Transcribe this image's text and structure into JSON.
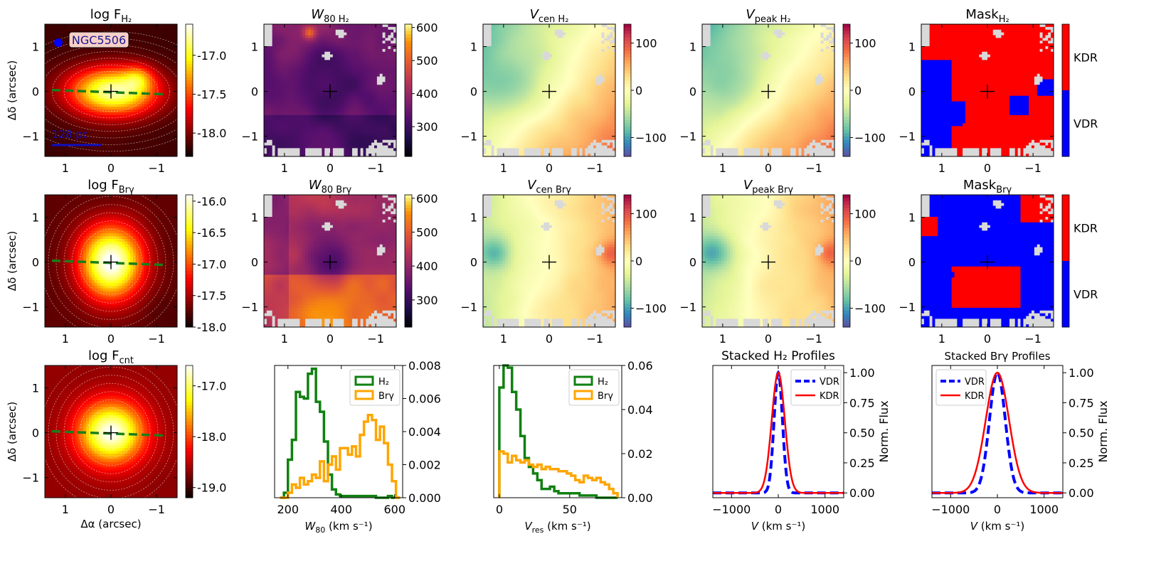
{
  "figure": {
    "galaxy_label": "NGC5506",
    "scalebar_label": "128 pc"
  },
  "colors": {
    "h2": "#108010",
    "brg": "#ffa500",
    "vdr": "#0000ff",
    "kdr": "#ff0000",
    "mask_bad": "#d9d9d9",
    "pa_line": "#1a7f1a"
  },
  "map_axes": {
    "x_ticks": [
      1,
      0,
      -1
    ],
    "x_tick_labels": [
      "1",
      "0",
      "−1"
    ],
    "y_ticks": [
      1,
      0,
      -1
    ],
    "y_tick_labels": [
      "1",
      "0",
      "−1"
    ],
    "xlim": [
      1.45,
      -1.45
    ],
    "ylim": [
      -1.45,
      1.5
    ],
    "xlabel": "Δα (arcsec)",
    "ylabel": "Δδ (arcsec)"
  },
  "maps": [
    {
      "id": "flux_h2",
      "title": "log F",
      "title_sub": "H₂",
      "cmap": "hot",
      "clim": [
        -18.3,
        -16.6
      ],
      "ticks": [
        -17.0,
        -17.5,
        -18.0
      ],
      "tick_labels": [
        "-17.0",
        "-17.5",
        "-18.0"
      ],
      "field": "flux_h2",
      "gauss": "wide",
      "contours": true
    },
    {
      "id": "w80_h2",
      "title": "W",
      "title_sub": "80 H₂",
      "cmap": "inferno",
      "clim": [
        210,
        610
      ],
      "ticks": [
        600,
        500,
        400,
        300
      ],
      "tick_labels": [
        "600",
        "500",
        "400",
        "300"
      ],
      "field": "w80_h2"
    },
    {
      "id": "vcen_h2",
      "title": "V",
      "title_sub": "cen H₂",
      "cmap": "spectral",
      "clim": [
        -140,
        140
      ],
      "ticks": [
        100,
        0,
        -100
      ],
      "tick_labels": [
        "100",
        "0",
        "−100"
      ],
      "field": "vel_h2"
    },
    {
      "id": "vpeak_h2",
      "title": "V",
      "title_sub": "peak H₂",
      "cmap": "spectral",
      "clim": [
        -140,
        140
      ],
      "ticks": [
        100,
        0,
        -100
      ],
      "tick_labels": [
        "100",
        "0",
        "−100"
      ],
      "field": "vel_h2p"
    },
    {
      "id": "mask_h2",
      "title": "Mask",
      "title_sub": "H₂",
      "cmap": "mask",
      "clim": [
        0,
        1
      ],
      "ticks": [
        0.75,
        0.25
      ],
      "tick_labels": [
        "KDR",
        "VDR"
      ],
      "field": "mask_h2"
    },
    {
      "id": "flux_brg",
      "title": "log F",
      "title_sub": "Brγ",
      "cmap": "hot",
      "clim": [
        -18.0,
        -15.9
      ],
      "ticks": [
        -16.0,
        -16.5,
        -17.0,
        -17.5,
        -18.0
      ],
      "tick_labels": [
        "-16.0",
        "-16.5",
        "-17.0",
        "-17.5",
        "-18.0"
      ],
      "field": "flux_brg",
      "gauss": "round",
      "contours": true
    },
    {
      "id": "w80_brg",
      "title": "W",
      "title_sub": "80 Brγ",
      "cmap": "inferno",
      "clim": [
        220,
        610
      ],
      "ticks": [
        600,
        500,
        400,
        300
      ],
      "tick_labels": [
        "600",
        "500",
        "400",
        "300"
      ],
      "field": "w80_brg"
    },
    {
      "id": "vcen_brg",
      "title": "V",
      "title_sub": "cen Brγ",
      "cmap": "spectral",
      "clim": [
        -140,
        140
      ],
      "ticks": [
        100,
        0,
        -100
      ],
      "tick_labels": [
        "100",
        "0",
        "−100"
      ],
      "field": "vel_brg"
    },
    {
      "id": "vpeak_brg",
      "title": "V",
      "title_sub": "peak Brγ",
      "cmap": "spectral",
      "clim": [
        -140,
        140
      ],
      "ticks": [
        100,
        0,
        -100
      ],
      "tick_labels": [
        "100",
        "0",
        "−100"
      ],
      "field": "vel_brgp"
    },
    {
      "id": "mask_brg",
      "title": "Mask",
      "title_sub": "Brγ",
      "cmap": "mask",
      "clim": [
        0,
        1
      ],
      "ticks": [
        0.75,
        0.25
      ],
      "tick_labels": [
        "KDR",
        "VDR"
      ],
      "field": "mask_brg"
    },
    {
      "id": "flux_cnt",
      "title": "log F",
      "title_sub": "cnt",
      "cmap": "hot",
      "clim": [
        -19.2,
        -16.6
      ],
      "ticks": [
        -17.0,
        -18.0,
        -19.0
      ],
      "tick_labels": [
        "-17.0",
        "-18.0",
        "-19.0"
      ],
      "field": "flux_cnt",
      "gauss": "round",
      "contours": true
    }
  ],
  "chart_data": [
    {
      "type": "histogram",
      "title": "",
      "xlabel": "W",
      "xlabel_sub": "80",
      "xlabel_unit": " (km s⁻¹)",
      "xlim": [
        150,
        630
      ],
      "ylim": [
        0,
        0.008
      ],
      "x_ticks": [
        200,
        400,
        600
      ],
      "y_ticks": [
        0.0,
        0.002,
        0.004,
        0.006,
        0.008
      ],
      "y_tick_labels": [
        "0.000",
        "0.002",
        "0.004",
        "0.006",
        "0.008"
      ],
      "series": [
        {
          "name": "H₂",
          "edges": [
            170,
            185,
            200,
            215,
            230,
            245,
            260,
            275,
            290,
            305,
            320,
            335,
            350,
            365,
            380,
            395,
            410,
            425,
            440,
            455,
            470,
            485,
            500,
            515,
            530,
            545,
            560,
            575,
            590,
            605,
            620
          ],
          "values": [
            0.0,
            0.0003,
            0.0023,
            0.0035,
            0.0064,
            0.0061,
            0.006,
            0.0075,
            0.0078,
            0.0058,
            0.0052,
            0.0034,
            0.0014,
            0.0005,
            0.0002,
            0.0001,
            0.0001,
            0.0001,
            0.0001,
            0.0001,
            0.0001,
            0.0001,
            0.0001,
            0.0001,
            0.0,
            0.0,
            0.0,
            0.0001,
            0.0,
            0.0
          ]
        },
        {
          "name": "Brγ",
          "edges": [
            170,
            185,
            200,
            215,
            230,
            245,
            260,
            275,
            290,
            305,
            320,
            335,
            350,
            365,
            380,
            395,
            410,
            425,
            440,
            455,
            470,
            485,
            500,
            515,
            530,
            545,
            560,
            575,
            590,
            605,
            620
          ],
          "values": [
            0.0,
            0.0,
            0.0003,
            0.0008,
            0.0006,
            0.0012,
            0.0008,
            0.001,
            0.0014,
            0.0012,
            0.0022,
            0.001,
            0.002,
            0.0025,
            0.0017,
            0.003,
            0.003,
            0.0026,
            0.0031,
            0.0025,
            0.0038,
            0.0046,
            0.005,
            0.0047,
            0.0035,
            0.0043,
            0.0033,
            0.002,
            0.001,
            0.0
          ]
        }
      ]
    },
    {
      "type": "histogram",
      "title": "",
      "xlabel": "V",
      "xlabel_sub": "res",
      "xlabel_unit": " (km s⁻¹)",
      "xlim": [
        -4,
        87
      ],
      "ylim": [
        0,
        0.06
      ],
      "x_ticks": [
        0,
        50
      ],
      "y_ticks": [
        0.0,
        0.02,
        0.04,
        0.06
      ],
      "y_tick_labels": [
        "0.00",
        "0.02",
        "0.04",
        "0.06"
      ],
      "series": [
        {
          "name": "H₂",
          "edges": [
            0,
            3,
            6,
            9,
            12,
            15,
            18,
            21,
            24,
            27,
            30,
            33,
            36,
            39,
            42,
            45,
            48,
            51,
            54,
            57,
            60,
            63,
            66,
            69,
            72,
            75,
            78,
            81,
            84
          ],
          "values": [
            0.05,
            0.06,
            0.059,
            0.048,
            0.04,
            0.028,
            0.018,
            0.014,
            0.011,
            0.008,
            0.004,
            0.004,
            0.005,
            0.003,
            0.002,
            0.002,
            0.002,
            0.002,
            0.002,
            0.001,
            0.001,
            0.001,
            0.001,
            0.0,
            0.0,
            0.0,
            0.0,
            0.0
          ]
        },
        {
          "name": "Brγ",
          "edges": [
            0,
            3,
            6,
            9,
            12,
            15,
            18,
            21,
            24,
            27,
            30,
            33,
            36,
            39,
            42,
            45,
            48,
            51,
            54,
            57,
            60,
            63,
            66,
            69,
            72,
            75,
            78,
            81,
            84
          ],
          "values": [
            0.021,
            0.02,
            0.016,
            0.019,
            0.017,
            0.016,
            0.017,
            0.015,
            0.014,
            0.015,
            0.013,
            0.014,
            0.013,
            0.013,
            0.012,
            0.012,
            0.011,
            0.01,
            0.008,
            0.007,
            0.01,
            0.009,
            0.008,
            0.009,
            0.007,
            0.006,
            0.004,
            0.002
          ]
        }
      ]
    },
    {
      "type": "line",
      "title": "Stacked H₂ Profiles",
      "xlabel": "V",
      "xlabel_unit": " (km s⁻¹)",
      "ylabel": "Norm. Flux",
      "xlim": [
        -1400,
        1400
      ],
      "ylim": [
        -0.04,
        1.06
      ],
      "x_ticks": [
        -1000,
        0,
        1000
      ],
      "x_tick_labels": [
        "−1000",
        "0",
        "1000"
      ],
      "y_ticks": [
        0.0,
        0.25,
        0.5,
        0.75,
        1.0
      ],
      "y_tick_labels": [
        "0.00",
        "0.25",
        "0.50",
        "0.75",
        "1.00"
      ],
      "series": [
        {
          "name": "VDR",
          "sigma": 90,
          "style": "dashed"
        },
        {
          "name": "KDR",
          "sigma": 140,
          "style": "solid"
        }
      ]
    },
    {
      "type": "line",
      "title": "Stacked Brγ Profiles",
      "xlabel": "V",
      "xlabel_unit": " (km s⁻¹)",
      "ylabel": "Norm. Flux",
      "xlim": [
        -1400,
        1400
      ],
      "ylim": [
        -0.04,
        1.06
      ],
      "x_ticks": [
        -1000,
        0,
        1000
      ],
      "x_tick_labels": [
        "−1000",
        "0",
        "1000"
      ],
      "y_ticks": [
        0.0,
        0.25,
        0.5,
        0.75,
        1.0
      ],
      "y_tick_labels": [
        "0.00",
        "0.25",
        "0.50",
        "0.75",
        "1.00"
      ],
      "series": [
        {
          "name": "VDR",
          "sigma": 170,
          "style": "dashed"
        },
        {
          "name": "KDR",
          "sigma": 250,
          "style": "solid"
        }
      ]
    }
  ]
}
